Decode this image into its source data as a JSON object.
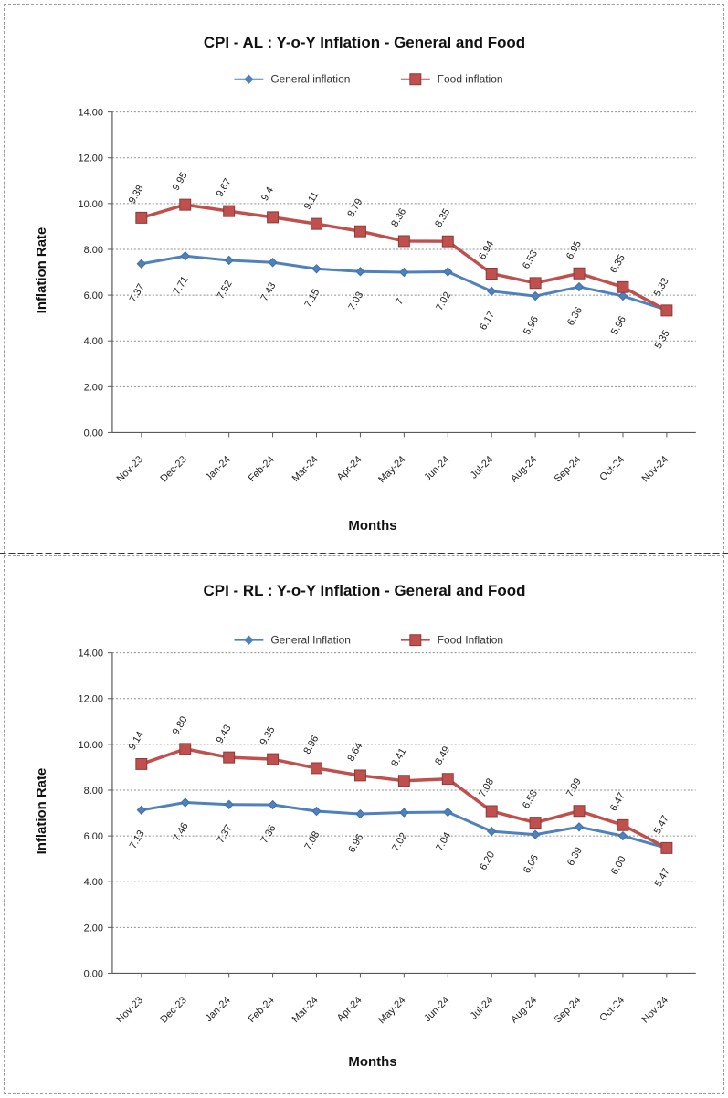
{
  "chart_data": [
    {
      "type": "line",
      "title": "CPI - AL : Y-o-Y Inflation - General and Food",
      "xlabel": "Months",
      "ylabel": "Inflation Rate",
      "ylim": [
        0,
        14
      ],
      "y_ticks": [
        "0.00",
        "2.00",
        "4.00",
        "6.00",
        "8.00",
        "10.00",
        "12.00",
        "14.00"
      ],
      "categories": [
        "Nov-23",
        "Dec-23",
        "Jan-24",
        "Feb-24",
        "Mar-24",
        "Apr-24",
        "May-24",
        "Jun-24",
        "Jul-24",
        "Aug-24",
        "Sep-24",
        "Oct-24",
        "Nov-24"
      ],
      "grid": true,
      "legend": "top-center",
      "series": [
        {
          "name": "General inflation",
          "values": [
            7.37,
            7.71,
            7.52,
            7.43,
            7.15,
            7.03,
            7.0,
            7.02,
            6.17,
            5.96,
            6.36,
            5.96,
            5.35
          ],
          "labels": [
            "7.37",
            "7.71",
            "7.52",
            "7.43",
            "7.15",
            "7.03",
            "7",
            "7.02",
            "6.17",
            "5.96",
            "6.36",
            "5.96",
            "5.35"
          ],
          "color": "#4f81bd",
          "marker": "diamond"
        },
        {
          "name": "Food inflation",
          "values": [
            9.38,
            9.95,
            9.67,
            9.4,
            9.11,
            8.79,
            8.36,
            8.35,
            6.94,
            6.53,
            6.95,
            6.35,
            5.33
          ],
          "labels": [
            "9.38",
            "9.95",
            "9.67",
            "9.4",
            "9.11",
            "8.79",
            "8.36",
            "8.35",
            "6.94",
            "6.53",
            "6.95",
            "6.35",
            "5.33"
          ],
          "color": "#c0504d",
          "marker": "square"
        }
      ]
    },
    {
      "type": "line",
      "title": "CPI - RL : Y-o-Y Inflation - General and Food",
      "xlabel": "Months",
      "ylabel": "Inflation Rate",
      "ylim": [
        0,
        14
      ],
      "y_ticks": [
        "0.00",
        "2.00",
        "4.00",
        "6.00",
        "8.00",
        "10.00",
        "12.00",
        "14.00"
      ],
      "categories": [
        "Nov-23",
        "Dec-23",
        "Jan-24",
        "Feb-24",
        "Mar-24",
        "Apr-24",
        "May-24",
        "Jun-24",
        "Jul-24",
        "Aug-24",
        "Sep-24",
        "Oct-24",
        "Nov-24"
      ],
      "grid": true,
      "legend": "top-center",
      "series": [
        {
          "name": "General Inflation",
          "values": [
            7.13,
            7.46,
            7.37,
            7.36,
            7.08,
            6.96,
            7.02,
            7.04,
            6.2,
            6.06,
            6.39,
            6.0,
            5.47
          ],
          "labels": [
            "7.13",
            "7.46",
            "7.37",
            "7.36",
            "7.08",
            "6.96",
            "7.02",
            "7.04",
            "6.20",
            "6.06",
            "6.39",
            "6.00",
            "5.47"
          ],
          "color": "#4f81bd",
          "marker": "diamond"
        },
        {
          "name": "Food Inflation",
          "values": [
            9.14,
            9.8,
            9.43,
            9.35,
            8.96,
            8.64,
            8.41,
            8.49,
            7.08,
            6.58,
            7.09,
            6.47,
            5.47
          ],
          "labels": [
            "9.14",
            "9.80",
            "9.43",
            "9.35",
            "8.96",
            "8.64",
            "8.41",
            "8.49",
            "7.08",
            "6.58",
            "7.09",
            "6.47",
            "5.47"
          ],
          "color": "#c0504d",
          "marker": "square"
        }
      ]
    }
  ]
}
